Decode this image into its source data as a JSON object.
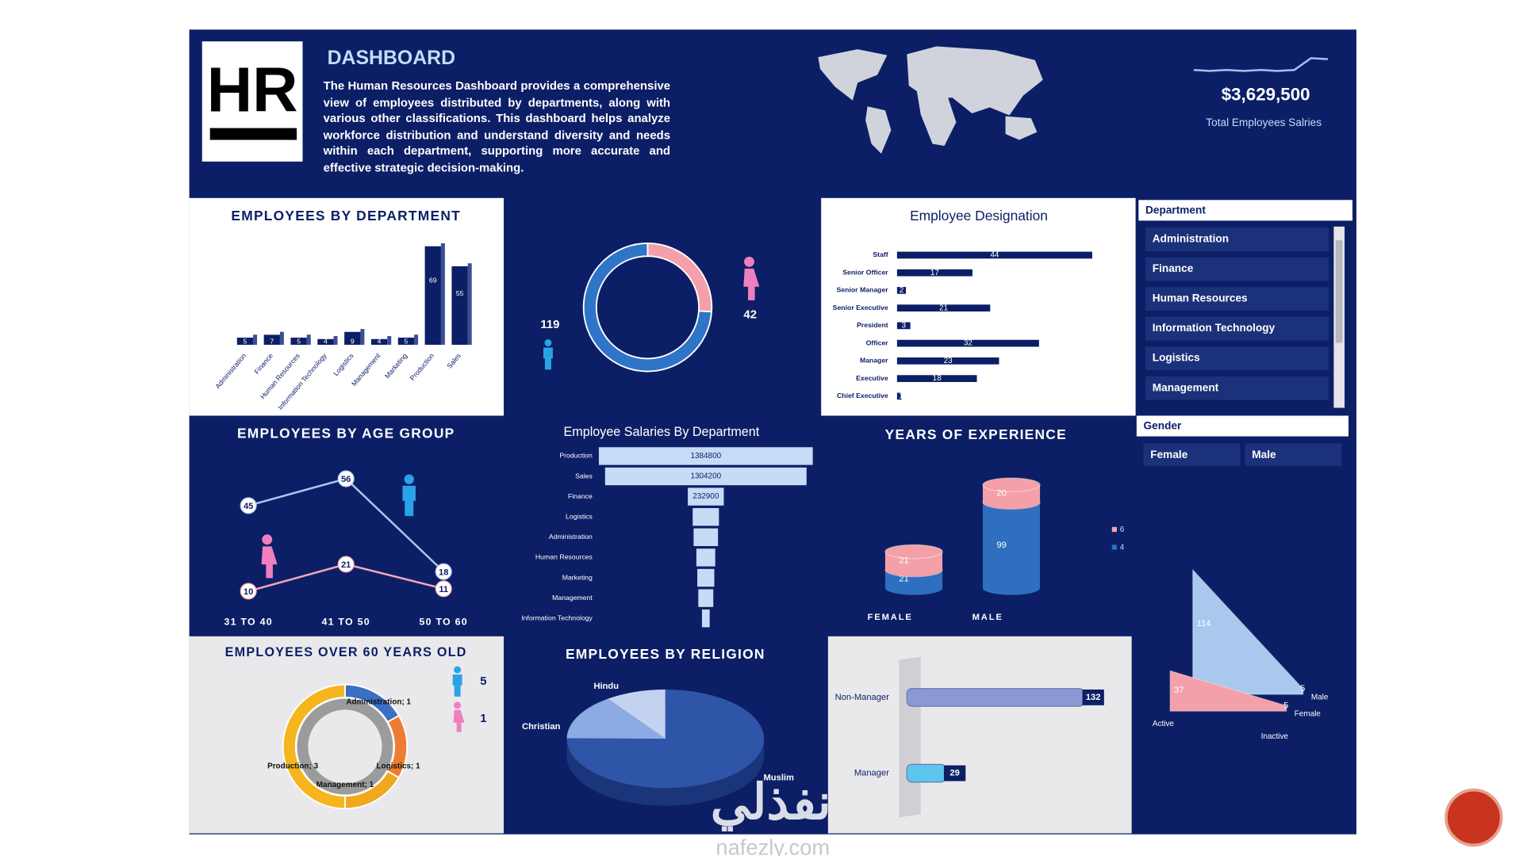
{
  "header": {
    "logo": "HR",
    "title": "DASHBOARD",
    "description": "The Human Resources Dashboard provides a comprehensive view of employees distributed by departments, along with various other classifications. This dashboard helps analyze workforce distribution and understand diversity and needs within each department, supporting more accurate and effective strategic decision-making."
  },
  "kpi": {
    "value": 3629500,
    "value_label": "$3,629,500",
    "label": "Total Employees Salries"
  },
  "slicers": {
    "department": {
      "title": "Department",
      "items": [
        "Administration",
        "Finance",
        "Human Resources",
        "Information Technology",
        "Logistics",
        "Management"
      ]
    },
    "gender": {
      "title": "Gender",
      "items": [
        "Female",
        "Male"
      ]
    }
  },
  "watermark": {
    "arabic": "نفذلي",
    "latin": "nafezly.com"
  },
  "chart_data": [
    {
      "type": "bar",
      "title": "EMPLOYEES BY DEPARTMENT",
      "categories": [
        "Administration",
        "Finance",
        "Human Resources",
        "Information Technology",
        "Logistics",
        "Management",
        "Marketing",
        "Production",
        "Sales"
      ],
      "values": [
        5,
        7,
        5,
        4,
        9,
        4,
        5,
        69,
        55
      ],
      "color": "#0c1f66"
    },
    {
      "type": "donut",
      "values": [
        119,
        42
      ],
      "colors": [
        "#2e75c8",
        "#f4a0aa"
      ]
    },
    {
      "type": "barh",
      "title": "Employee Designation",
      "categories": [
        "Staff",
        "Senior Officer",
        "Senior Manager",
        "Senior Executive",
        "President",
        "Officer",
        "Manager",
        "Executive",
        "Chief Executive"
      ],
      "values": [
        44,
        17,
        2,
        21,
        3,
        32,
        23,
        18,
        1
      ],
      "color": "#0c1f66"
    },
    {
      "type": "line",
      "title": "EMPLOYEES BY AGE GROUP",
      "categories": [
        "31 TO 40",
        "41 TO 50",
        "50 TO 60"
      ],
      "series": [
        {
          "color": "#a9c8f0",
          "values": [
            45,
            56,
            18
          ]
        },
        {
          "color": "#f4a6b4",
          "values": [
            10,
            21,
            11
          ]
        }
      ]
    },
    {
      "type": "funnel",
      "title": "Employee Salaries By Department",
      "categories": [
        "Production",
        "Sales",
        "Finance",
        "Logistics",
        "Administration",
        "Human Resources",
        "Marketing",
        "Management",
        "Information Technology"
      ],
      "values": [
        1384800,
        1304200,
        232900,
        170000,
        158000,
        122000,
        110000,
        97000,
        50000
      ],
      "value_labels": [
        "1384800",
        "1304200",
        "232900",
        null,
        null,
        null,
        null,
        null,
        null
      ],
      "color": "#c6dcf6"
    },
    {
      "type": "stacked-column",
      "title": "YEARS OF EXPERIENCE",
      "categories": [
        "FEMALE",
        "MALE"
      ],
      "series": [
        {
          "name": "4",
          "color": "#2e6fbf",
          "values": [
            21,
            99
          ]
        },
        {
          "name": "6",
          "color": "#f4a0a8",
          "values": [
            21,
            20
          ]
        }
      ]
    },
    {
      "type": "donut",
      "title": "EMPLOYEES OVER 60 YEARS OLD",
      "values": [
        1,
        1,
        1,
        3
      ],
      "value_labels": [
        "Administration; 1",
        "Logistics; 1",
        "Management; 1",
        "Production; 3"
      ],
      "colors": [
        "#3a70c4",
        "#ed7d31",
        "#f0a81c",
        "#f5b51e"
      ],
      "icon_values": [
        5,
        1
      ]
    },
    {
      "type": "pie",
      "title": "EMPLOYEES BY RELIGION",
      "categories": [
        "Hindu",
        "Christian",
        "Muslim"
      ],
      "values": [
        16,
        24,
        121
      ],
      "colors": [
        "#c3d2ef",
        "#8caae3",
        "#2f55a8"
      ]
    },
    {
      "type": "barh",
      "categories": [
        "Non-Manager",
        "Manager"
      ],
      "values": [
        132,
        29
      ],
      "colors": [
        "#8a98d4",
        "#5cc6ee"
      ]
    },
    {
      "type": "area3d",
      "categories": [
        "Active",
        "Inactive"
      ],
      "series": [
        {
          "name": "Male",
          "color": "#a9c8ee",
          "values": [
            114,
            5
          ]
        },
        {
          "name": "Female",
          "color": "#f4a0aa",
          "values": [
            37,
            5
          ]
        }
      ]
    }
  ]
}
